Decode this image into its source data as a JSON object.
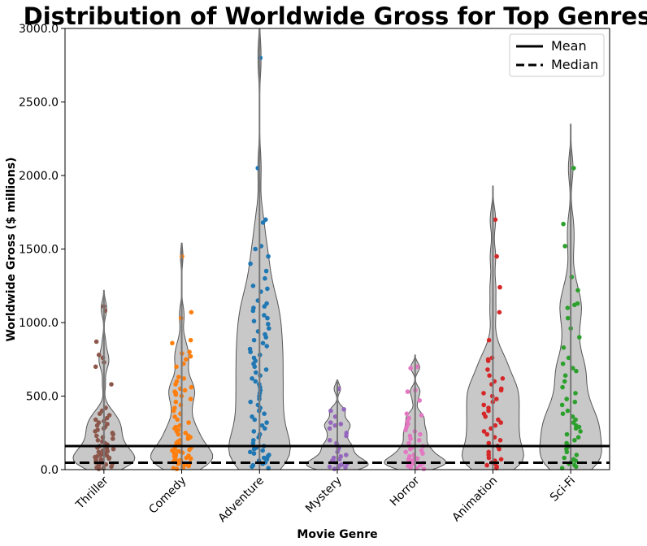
{
  "chart_data": {
    "type": "violin+strip",
    "title": "Distribution of Worldwide Gross for Top Genres",
    "xlabel": "Movie Genre",
    "ylabel": "Worldwide Gross ($ millions)",
    "ylim": [
      0,
      3000
    ],
    "yticks": [
      "0.0",
      "500.0",
      "1000.0",
      "1500.0",
      "2000.0",
      "2500.0",
      "3000.0"
    ],
    "reference_lines": {
      "mean": {
        "label": "Mean",
        "value": 160,
        "style": "solid"
      },
      "median": {
        "label": "Median",
        "value": 47,
        "style": "dashed"
      }
    },
    "legend": {
      "position": "upper right",
      "entries": [
        "Mean",
        "Median"
      ]
    },
    "violin_color": "#c8c8c8",
    "categories": [
      "Thriller",
      "Comedy",
      "Adventure",
      "Mystery",
      "Horror",
      "Animation",
      "Sci-Fi"
    ],
    "series": [
      {
        "name": "Thriller",
        "color": "#8c564b",
        "max": 1220,
        "points": [
          1110,
          1080,
          870,
          780,
          760,
          730,
          700,
          580,
          420,
          400,
          380,
          370,
          350,
          340,
          330,
          320,
          310,
          300,
          290,
          280,
          270,
          260,
          250,
          240,
          230,
          220,
          210,
          200,
          190,
          180,
          170,
          160,
          150,
          140,
          130,
          120,
          110,
          100,
          90,
          80,
          70,
          60,
          50,
          40,
          30,
          20,
          10,
          5,
          35,
          55,
          75,
          95,
          15,
          25,
          45,
          65,
          85,
          105,
          125,
          145
        ]
      },
      {
        "name": "Comedy",
        "color": "#ff7f0e",
        "max": 1540,
        "points": [
          1450,
          1070,
          1030,
          880,
          860,
          800,
          790,
          770,
          750,
          720,
          700,
          630,
          620,
          600,
          580,
          560,
          550,
          540,
          530,
          520,
          510,
          500,
          480,
          460,
          440,
          420,
          400,
          380,
          360,
          340,
          320,
          300,
          290,
          280,
          270,
          260,
          250,
          240,
          230,
          220,
          210,
          200,
          190,
          180,
          170,
          160,
          150,
          140,
          130,
          120,
          110,
          100,
          90,
          80,
          70,
          60,
          50,
          40,
          30,
          20,
          10,
          5,
          15,
          25,
          35,
          45,
          55,
          65,
          75,
          85,
          95,
          105,
          115,
          125,
          135
        ]
      },
      {
        "name": "Adventure",
        "color": "#1f77b4",
        "max": 3000,
        "points": [
          2800,
          2050,
          1700,
          1680,
          1520,
          1500,
          1450,
          1400,
          1350,
          1300,
          1250,
          1230,
          1210,
          1150,
          1130,
          1110,
          1100,
          1080,
          1050,
          1030,
          1010,
          990,
          960,
          940,
          920,
          900,
          880,
          860,
          840,
          820,
          800,
          780,
          760,
          740,
          720,
          700,
          680,
          660,
          640,
          620,
          600,
          580,
          560,
          540,
          520,
          500,
          480,
          460,
          440,
          420,
          400,
          380,
          360,
          340,
          320,
          300,
          280,
          260,
          240,
          220,
          200,
          180,
          160,
          140,
          120,
          100,
          80,
          60,
          40,
          20,
          10,
          30,
          50,
          70,
          90,
          110,
          130,
          150
        ]
      },
      {
        "name": "Mystery",
        "color": "#9467bd",
        "max": 610,
        "points": [
          550,
          410,
          400,
          360,
          320,
          310,
          300,
          280,
          250,
          230,
          200,
          180,
          160,
          150,
          140,
          120,
          100,
          90,
          80,
          70,
          60,
          50,
          40,
          30,
          20,
          10,
          5,
          15,
          25,
          35
        ]
      },
      {
        "name": "Horror",
        "color": "#e377c2",
        "max": 780,
        "points": [
          700,
          690,
          540,
          530,
          470,
          380,
          370,
          350,
          330,
          310,
          290,
          270,
          260,
          240,
          230,
          210,
          200,
          180,
          160,
          150,
          140,
          130,
          120,
          110,
          100,
          90,
          80,
          70,
          60,
          50,
          40,
          30,
          20,
          10,
          5,
          15,
          25,
          35,
          45,
          55,
          65,
          75
        ]
      },
      {
        "name": "Animation",
        "color": "#d62728",
        "max": 1930,
        "points": [
          1700,
          1450,
          1240,
          1070,
          880,
          760,
          750,
          740,
          680,
          640,
          620,
          600,
          580,
          550,
          540,
          520,
          500,
          480,
          460,
          440,
          420,
          400,
          380,
          360,
          340,
          320,
          300,
          280,
          260,
          240,
          220,
          200,
          180,
          160,
          140,
          120,
          100,
          80,
          60,
          40,
          20,
          10,
          30,
          50,
          70
        ]
      },
      {
        "name": "Sci-Fi",
        "color": "#2ca02c",
        "max": 2350,
        "points": [
          2050,
          1670,
          1520,
          1310,
          1220,
          1130,
          1120,
          1100,
          1030,
          960,
          900,
          830,
          760,
          720,
          690,
          670,
          640,
          600,
          560,
          520,
          480,
          460,
          440,
          400,
          380,
          360,
          340,
          320,
          300,
          290,
          280,
          260,
          240,
          220,
          200,
          180,
          160,
          140,
          120,
          100,
          80,
          60,
          40,
          20,
          10,
          30,
          50,
          70
        ]
      }
    ]
  }
}
